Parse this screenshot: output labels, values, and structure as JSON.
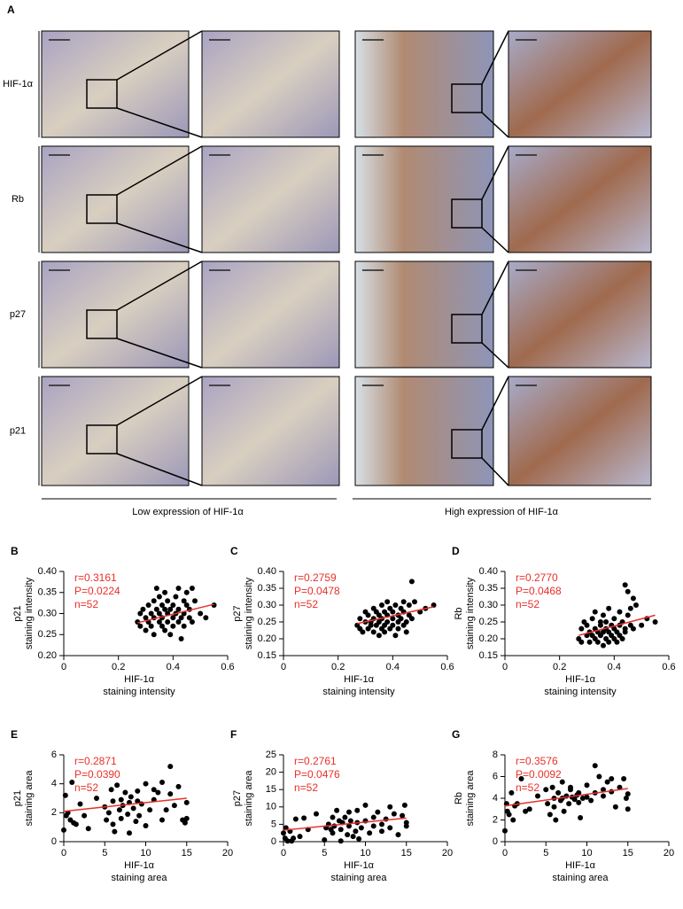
{
  "figure": {
    "panel_label": "A",
    "rows": [
      "HIF-1α",
      "Rb",
      "p27",
      "p21"
    ],
    "groups": [
      "Low expression of HIF-1α",
      "High expression of HIF-1α"
    ]
  },
  "chart_data": [
    {
      "type": "scatter",
      "panel": "B",
      "y_label": [
        "p21",
        "staining intensity"
      ],
      "x_label": [
        "HIF-1α",
        "staining intensity"
      ],
      "annotations": [
        "r=0.3161",
        "P=0.0224",
        "n=52"
      ],
      "color": "#000000",
      "x": [
        0.27,
        0.28,
        0.28,
        0.29,
        0.3,
        0.3,
        0.31,
        0.31,
        0.32,
        0.32,
        0.33,
        0.33,
        0.33,
        0.34,
        0.34,
        0.35,
        0.35,
        0.35,
        0.36,
        0.36,
        0.36,
        0.37,
        0.37,
        0.37,
        0.38,
        0.38,
        0.38,
        0.39,
        0.39,
        0.4,
        0.4,
        0.4,
        0.41,
        0.41,
        0.42,
        0.42,
        0.42,
        0.43,
        0.43,
        0.44,
        0.44,
        0.44,
        0.45,
        0.45,
        0.46,
        0.46,
        0.47,
        0.47,
        0.48,
        0.5,
        0.52,
        0.55
      ],
      "y": [
        0.28,
        0.3,
        0.27,
        0.31,
        0.29,
        0.26,
        0.32,
        0.28,
        0.3,
        0.27,
        0.33,
        0.29,
        0.25,
        0.36,
        0.31,
        0.28,
        0.3,
        0.34,
        0.27,
        0.32,
        0.29,
        0.35,
        0.26,
        0.31,
        0.3,
        0.28,
        0.33,
        0.25,
        0.31,
        0.29,
        0.32,
        0.27,
        0.3,
        0.34,
        0.28,
        0.31,
        0.36,
        0.29,
        0.24,
        0.33,
        0.3,
        0.27,
        0.32,
        0.35,
        0.29,
        0.31,
        0.36,
        0.28,
        0.33,
        0.3,
        0.29,
        0.32
      ],
      "fit": {
        "x": [
          0.27,
          0.55
        ],
        "y": [
          0.278,
          0.322
        ],
        "color": "#e8302a"
      },
      "xlim": [
        0,
        0.6
      ],
      "ylim": [
        0.2,
        0.4
      ],
      "xticks": [
        0,
        0.2,
        0.4,
        0.6
      ],
      "yticks": [
        {
          "value": 0.2,
          "label": "0.20"
        },
        0.25,
        {
          "value": 0.3,
          "label": "0.30"
        },
        0.35,
        {
          "value": 0.4,
          "label": "0.40"
        }
      ]
    },
    {
      "type": "scatter",
      "panel": "C",
      "y_label": [
        "p27",
        "staining intensity"
      ],
      "x_label": [
        "HIF-1α",
        "staining intensity"
      ],
      "annotations": [
        "r=0.2759",
        "P=0.0478",
        "n=52"
      ],
      "color": "#000000",
      "x": [
        0.27,
        0.28,
        0.28,
        0.29,
        0.3,
        0.3,
        0.31,
        0.31,
        0.32,
        0.32,
        0.33,
        0.33,
        0.33,
        0.34,
        0.34,
        0.35,
        0.35,
        0.35,
        0.36,
        0.36,
        0.36,
        0.37,
        0.37,
        0.37,
        0.38,
        0.38,
        0.38,
        0.39,
        0.39,
        0.4,
        0.4,
        0.4,
        0.41,
        0.41,
        0.42,
        0.42,
        0.42,
        0.43,
        0.43,
        0.44,
        0.44,
        0.44,
        0.45,
        0.45,
        0.46,
        0.46,
        0.47,
        0.47,
        0.48,
        0.5,
        0.52,
        0.55
      ],
      "y": [
        0.24,
        0.23,
        0.26,
        0.22,
        0.25,
        0.28,
        0.23,
        0.27,
        0.25,
        0.24,
        0.29,
        0.22,
        0.26,
        0.24,
        0.28,
        0.21,
        0.25,
        0.27,
        0.3,
        0.23,
        0.26,
        0.24,
        0.28,
        0.22,
        0.31,
        0.25,
        0.27,
        0.23,
        0.29,
        0.26,
        0.24,
        0.28,
        0.21,
        0.3,
        0.25,
        0.27,
        0.23,
        0.29,
        0.26,
        0.31,
        0.24,
        0.28,
        0.25,
        0.22,
        0.3,
        0.27,
        0.37,
        0.26,
        0.31,
        0.28,
        0.29,
        0.3
      ],
      "fit": {
        "x": [
          0.27,
          0.55
        ],
        "y": [
          0.245,
          0.295
        ],
        "color": "#e8302a"
      },
      "xlim": [
        0,
        0.6
      ],
      "ylim": [
        0.15,
        0.4
      ],
      "xticks": [
        0,
        0.2,
        0.4,
        0.6
      ],
      "yticks": [
        0.15,
        {
          "value": 0.2,
          "label": "0.20"
        },
        0.25,
        {
          "value": 0.3,
          "label": "0.30"
        },
        0.35,
        {
          "value": 0.4,
          "label": "0.40"
        }
      ]
    },
    {
      "type": "scatter",
      "panel": "D",
      "y_label": [
        "Rb",
        "staining intensity"
      ],
      "x_label": [
        "HIF-1α",
        "staining intensity"
      ],
      "annotations": [
        "r=0.2770",
        "P=0.0468",
        "n=52"
      ],
      "color": "#000000",
      "x": [
        0.27,
        0.28,
        0.28,
        0.29,
        0.3,
        0.3,
        0.31,
        0.31,
        0.32,
        0.32,
        0.33,
        0.33,
        0.33,
        0.34,
        0.34,
        0.35,
        0.35,
        0.35,
        0.36,
        0.36,
        0.36,
        0.37,
        0.37,
        0.37,
        0.38,
        0.38,
        0.38,
        0.39,
        0.39,
        0.4,
        0.4,
        0.4,
        0.41,
        0.41,
        0.42,
        0.42,
        0.42,
        0.43,
        0.43,
        0.44,
        0.44,
        0.44,
        0.45,
        0.45,
        0.46,
        0.46,
        0.47,
        0.47,
        0.48,
        0.5,
        0.52,
        0.55
      ],
      "y": [
        0.2,
        0.23,
        0.19,
        0.25,
        0.21,
        0.24,
        0.22,
        0.19,
        0.26,
        0.21,
        0.23,
        0.2,
        0.28,
        0.22,
        0.19,
        0.25,
        0.21,
        0.24,
        0.18,
        0.22,
        0.27,
        0.2,
        0.23,
        0.25,
        0.19,
        0.22,
        0.29,
        0.21,
        0.24,
        0.2,
        0.23,
        0.26,
        0.19,
        0.22,
        0.28,
        0.21,
        0.24,
        0.2,
        0.25,
        0.23,
        0.36,
        0.22,
        0.27,
        0.34,
        0.24,
        0.29,
        0.32,
        0.23,
        0.3,
        0.24,
        0.26,
        0.25
      ],
      "fit": {
        "x": [
          0.27,
          0.55
        ],
        "y": [
          0.21,
          0.27
        ],
        "color": "#e8302a"
      },
      "xlim": [
        0,
        0.6
      ],
      "ylim": [
        0.15,
        0.4
      ],
      "xticks": [
        0,
        0.2,
        0.4,
        0.6
      ],
      "yticks": [
        0.15,
        {
          "value": 0.2,
          "label": "0.20"
        },
        0.25,
        {
          "value": 0.3,
          "label": "0.30"
        },
        0.35,
        {
          "value": 0.4,
          "label": "0.40"
        }
      ]
    },
    {
      "type": "scatter",
      "panel": "E",
      "y_label": [
        "p21",
        "staining area"
      ],
      "x_label": [
        "HIF-1α",
        "staining area"
      ],
      "annotations": [
        "r=0.2871",
        "P=0.0390",
        "n=52"
      ],
      "color": "#000000",
      "x": [
        0,
        0.2,
        0.5,
        0.8,
        1,
        1.5,
        2,
        2.5,
        3,
        4,
        5,
        5.2,
        5.5,
        5.8,
        6,
        6,
        6.2,
        6.5,
        6.8,
        7,
        7,
        7.2,
        7.5,
        7.8,
        8,
        8,
        8.2,
        8.5,
        8.8,
        9,
        9,
        9.2,
        9.5,
        10,
        10,
        10.5,
        11,
        11,
        11.5,
        12,
        12,
        12.5,
        13,
        13,
        13.5,
        14,
        14.5,
        14.8,
        15,
        15,
        0.3,
        1.2
      ],
      "y": [
        0.8,
        3.2,
        2,
        1.5,
        4.1,
        1.2,
        2.6,
        1.8,
        0.9,
        3,
        2.4,
        1.5,
        2,
        3.6,
        2.8,
        1.2,
        0.7,
        3.9,
        2.2,
        2.9,
        1.6,
        2.5,
        3.4,
        1.9,
        2.7,
        0.6,
        3.1,
        2.3,
        1.4,
        2.8,
        3.5,
        1.8,
        2.6,
        4,
        1.1,
        2.2,
        3.6,
        2.9,
        3.4,
        1.5,
        4.1,
        2.2,
        3.3,
        5.2,
        2.5,
        3.8,
        1.5,
        1.3,
        2.7,
        1.6,
        1.8,
        1.3
      ],
      "fit": {
        "x": [
          0,
          15
        ],
        "y": [
          2.1,
          3.0
        ],
        "color": "#e8302a"
      },
      "xlim": [
        0,
        20
      ],
      "ylim": [
        0,
        6
      ],
      "xticks": [
        0,
        5,
        10,
        15,
        20
      ],
      "yticks": [
        0,
        2,
        4,
        6
      ]
    },
    {
      "type": "scatter",
      "panel": "F",
      "y_label": [
        "p27",
        "staining area"
      ],
      "x_label": [
        "HIF-1α",
        "staining area"
      ],
      "annotations": [
        "r=0.2761",
        "P=0.0476",
        "n=52"
      ],
      "color": "#000000",
      "x": [
        0,
        0.2,
        0.5,
        0.8,
        1,
        1.5,
        2,
        2.5,
        3,
        4,
        5,
        5.2,
        5.5,
        5.8,
        6,
        6,
        6.2,
        6.5,
        6.8,
        7,
        7,
        7.2,
        7.5,
        7.8,
        8,
        8,
        8.2,
        8.5,
        8.8,
        9,
        9,
        9.2,
        9.5,
        10,
        10,
        10.5,
        11,
        11,
        11.5,
        12,
        12,
        12.5,
        13,
        13,
        13.5,
        14,
        14.5,
        14.8,
        15,
        15,
        0.3,
        1.2
      ],
      "y": [
        2.5,
        1,
        0.2,
        3,
        0.2,
        6.5,
        1.5,
        6.8,
        3.5,
        8,
        0.5,
        4,
        5,
        3.5,
        7,
        2.5,
        4.5,
        9,
        6,
        0.2,
        3.5,
        5.5,
        7,
        2,
        4.5,
        8.5,
        6,
        1.5,
        3,
        9,
        5.5,
        0.8,
        4,
        10.5,
        6,
        2.5,
        4.5,
        7,
        8.5,
        5,
        3,
        6.5,
        10,
        4,
        8,
        2,
        7.5,
        10.5,
        5.5,
        4.5,
        4,
        1
      ],
      "fit": {
        "x": [
          0,
          15
        ],
        "y": [
          3.3,
          6.8
        ],
        "color": "#e8302a"
      },
      "xlim": [
        0,
        20
      ],
      "ylim": [
        0,
        25
      ],
      "xticks": [
        0,
        5,
        10,
        15,
        20
      ],
      "yticks": [
        0,
        5,
        10,
        15,
        20,
        25
      ]
    },
    {
      "type": "scatter",
      "panel": "G",
      "y_label": [
        "Rb",
        "staining area"
      ],
      "x_label": [
        "HIF-1α",
        "staining area"
      ],
      "annotations": [
        "r=0.3576",
        "P=0.0092",
        "n=52"
      ],
      "color": "#000000",
      "x": [
        0,
        0.2,
        0.5,
        0.8,
        1,
        1.5,
        2,
        2.5,
        3,
        4,
        5,
        5.2,
        5.5,
        5.8,
        6,
        6,
        6.2,
        6.5,
        6.8,
        7,
        7,
        7.2,
        7.5,
        7.8,
        8,
        8,
        8.2,
        8.5,
        8.8,
        9,
        9,
        9.2,
        9.5,
        10,
        10,
        10.5,
        11,
        11,
        11.5,
        12,
        12,
        12.5,
        13,
        13,
        13.5,
        14,
        14.5,
        14.8,
        15,
        15,
        0.3,
        1.2
      ],
      "y": [
        1,
        3.5,
        2.5,
        4.5,
        2,
        3.5,
        5.8,
        2.8,
        3,
        4.2,
        4.8,
        3.5,
        2.5,
        5,
        4,
        3.2,
        2,
        4.5,
        3.8,
        5.5,
        4,
        2.8,
        4.2,
        3.5,
        5,
        4.8,
        4.1,
        3.9,
        4.3,
        3.6,
        4.5,
        2.2,
        4,
        5.2,
        4.1,
        3.8,
        7,
        4.5,
        6,
        4.2,
        4.8,
        5.5,
        4.6,
        5.8,
        3.2,
        5,
        5.8,
        4,
        3,
        4.4,
        2.8,
        3.3
      ],
      "fit": {
        "x": [
          0,
          15
        ],
        "y": [
          3.3,
          4.9
        ],
        "color": "#e8302a"
      },
      "xlim": [
        0,
        20
      ],
      "ylim": [
        0,
        8
      ],
      "xticks": [
        0,
        5,
        10,
        15,
        20
      ],
      "yticks": [
        0,
        2,
        4,
        6,
        8
      ]
    }
  ]
}
